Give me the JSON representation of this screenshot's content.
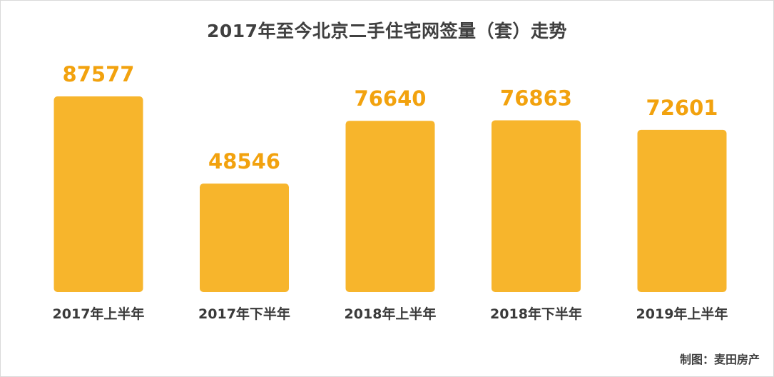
{
  "chart_data": {
    "type": "bar",
    "title": "2017年至今北京二手住宅网签量（套）走势",
    "categories": [
      "2017年上半年",
      "2017年下半年",
      "2018年上半年",
      "2018年下半年",
      "2019年上半年"
    ],
    "values": [
      87577,
      48546,
      76640,
      76863,
      72601
    ],
    "value_labels": [
      "87577",
      "48546",
      "76640",
      "76863",
      "72601"
    ],
    "xlabel": "",
    "ylabel": "",
    "ylim": [
      0,
      100000
    ],
    "grid": false,
    "bar_color": "#F7B52C",
    "value_label_color": "#F2A20E"
  },
  "footer": {
    "source": "制图：麦田房产"
  }
}
